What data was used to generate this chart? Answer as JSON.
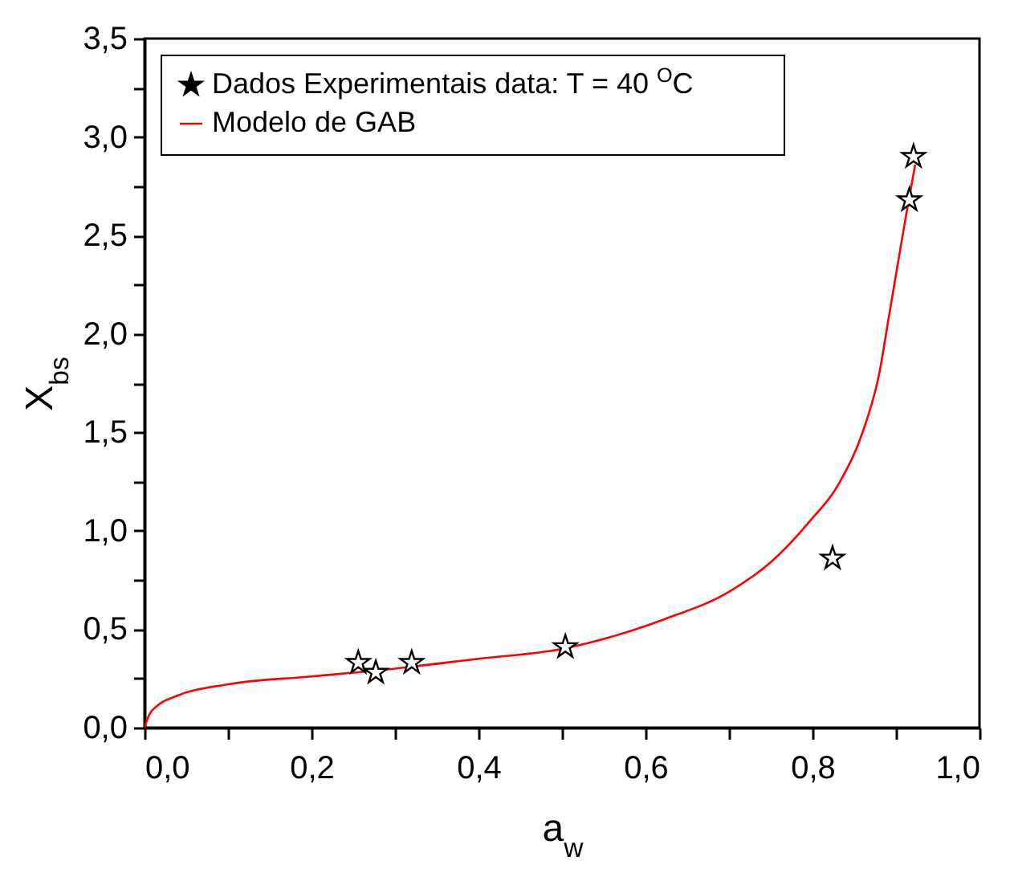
{
  "chart_data": {
    "type": "scatter",
    "xlabel": "a$_{w}$",
    "ylabel": "X$_{bs}$",
    "legend": "top left",
    "grid": false,
    "xlim": [
      0,
      1
    ],
    "ylim": [
      0,
      3.5
    ],
    "xticks": [
      {
        "value": 0,
        "label": "0,0"
      },
      {
        "value": 0.1,
        "label": null
      },
      {
        "value": 0.2,
        "label": "0,2"
      },
      {
        "value": 0.3,
        "label": null
      },
      {
        "value": 0.4,
        "label": "0,4"
      },
      {
        "value": 0.5,
        "label": null
      },
      {
        "value": 0.6,
        "label": "0,6"
      },
      {
        "value": 0.7,
        "label": null
      },
      {
        "value": 0.8,
        "label": "0,8"
      },
      {
        "value": 0.9,
        "label": null
      },
      {
        "value": 1,
        "label": "1,0"
      }
    ],
    "yticks": [
      {
        "value": 0,
        "label": "0,0"
      },
      {
        "value": 0.25,
        "label": null
      },
      {
        "value": 0.5,
        "label": "0,5"
      },
      {
        "value": 0.75,
        "label": null
      },
      {
        "value": 1,
        "label": "1,0"
      },
      {
        "value": 1.25,
        "label": null
      },
      {
        "value": 1.5,
        "label": "1,5"
      },
      {
        "value": 1.75,
        "label": null
      },
      {
        "value": 2,
        "label": "2,0"
      },
      {
        "value": 2.25,
        "label": null
      },
      {
        "value": 2.5,
        "label": "2,5"
      },
      {
        "value": 2.75,
        "label": null
      },
      {
        "value": 3,
        "label": "3,0"
      },
      {
        "value": 3.25,
        "label": null
      },
      {
        "value": 3.5,
        "label": "3,5"
      }
    ],
    "series": [
      {
        "name": "Dados Experimentais data: T = 40 $^{O}$C",
        "marker": "star",
        "color": "#000000",
        "x": [
          0.256,
          0.277,
          0.32,
          0.504,
          0.824,
          0.916,
          0.921
        ],
        "values": [
          0.33,
          0.28,
          0.33,
          0.41,
          0.86,
          2.68,
          2.9
        ]
      },
      {
        "name": "Modelo de GAB",
        "type": "line",
        "color": "#ff0000",
        "x": [
          0,
          0.005,
          0.015,
          0.038,
          0.1,
          0.2,
          0.3,
          0.4,
          0.5,
          0.622,
          0.7,
          0.75,
          0.795,
          0.833,
          0.86,
          0.88,
          0.892,
          0.912,
          0.923
        ],
        "values": [
          0,
          0.06,
          0.11,
          0.16,
          0.22,
          0.26,
          0.3,
          0.35,
          0.4,
          0.55,
          0.69,
          0.84,
          1.04,
          1.25,
          1.5,
          1.8,
          2.1,
          2.6,
          2.86
        ]
      }
    ]
  }
}
